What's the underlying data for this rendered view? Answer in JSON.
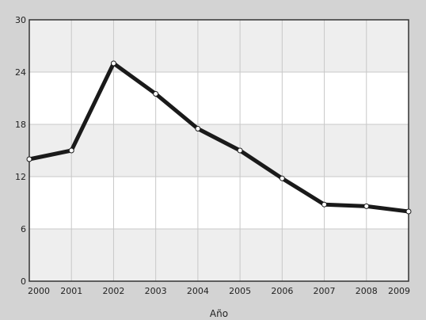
{
  "chart_data": {
    "type": "line",
    "x": [
      "2000",
      "2001",
      "2002",
      "2003",
      "2004",
      "2005",
      "2006",
      "2007",
      "2008",
      "2009"
    ],
    "series": [
      {
        "values": [
          14.0,
          15.0,
          25.0,
          21.5,
          17.5,
          15.0,
          11.8,
          8.8,
          8.6,
          8.0
        ]
      }
    ],
    "yticks": [
      0,
      6,
      12,
      18,
      24,
      30
    ],
    "ylim": [
      0,
      30
    ],
    "xlabel": "Año",
    "ylabel": "",
    "title": "",
    "grid": true,
    "colors": {
      "line": "#1a1a1a",
      "marker": "#ffffff",
      "plot_bg": "#ffffff",
      "band": "#eeeeee",
      "grid": "#c8c8c8",
      "frame": "#333333"
    }
  }
}
